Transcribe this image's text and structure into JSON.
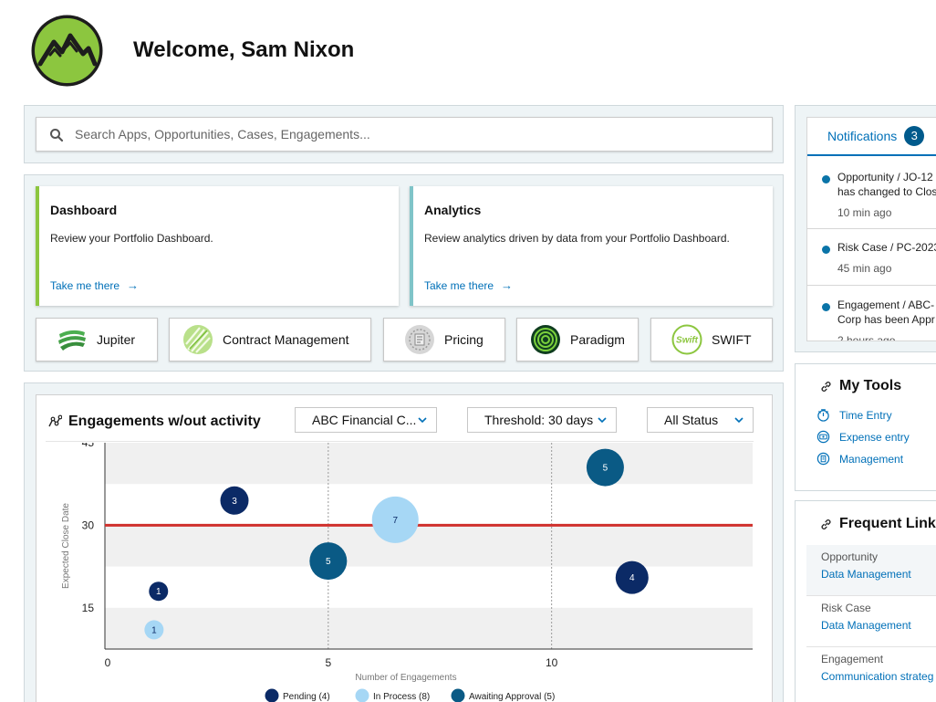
{
  "header": {
    "welcome": "Welcome, Sam Nixon"
  },
  "search": {
    "placeholder": "Search Apps, Opportunities, Cases, Engagements..."
  },
  "cards": [
    {
      "title": "Dashboard",
      "description": "Review your Portfolio Dashboard.",
      "link": "Take me there",
      "accent": "#8cc63f"
    },
    {
      "title": "Analytics",
      "description": "Review analytics driven by data from your Portfolio Dashboard.",
      "link": "Take me there",
      "accent": "#7fc4c8"
    }
  ],
  "apps": [
    {
      "label": "Jupiter",
      "icon": "jupiter-icon"
    },
    {
      "label": "Contract Management",
      "icon": "contract-management-icon"
    },
    {
      "label": "Pricing",
      "icon": "pricing-icon"
    },
    {
      "label": "Paradigm",
      "icon": "paradigm-icon"
    },
    {
      "label": "SWIFT",
      "icon": "swift-icon",
      "icon_text": "Swift"
    }
  ],
  "chart_panel": {
    "title": "Engagements w/out activity",
    "filters": {
      "client": "ABC Financial C...",
      "threshold": "Threshold: 30 days",
      "status": "All Status"
    }
  },
  "chart_data": {
    "type": "scatter",
    "subtype": "bubble",
    "xlabel": "Number of Engagements",
    "ylabel": "Expected Close Date",
    "xlim": [
      0,
      14.5
    ],
    "ylim": [
      7.5,
      45
    ],
    "x_ticks": [
      0,
      5,
      10
    ],
    "y_ticks": [
      15,
      30,
      45
    ],
    "y_tick_labels": [
      "15",
      "30",
      "45"
    ],
    "x_tick_labels": [
      "0",
      "5",
      "10"
    ],
    "threshold_line": 30,
    "threshold_color": "#d0312d",
    "grid": "banded",
    "legend_position": "bottom",
    "series": [
      {
        "name": "Pending (4)",
        "color": "#0b2a66",
        "points": [
          {
            "x": 1.2,
            "y": 18,
            "value": 1
          },
          {
            "x": 2.9,
            "y": 34.5,
            "value": 3
          },
          {
            "x": 11.8,
            "y": 20.5,
            "value": 4
          }
        ]
      },
      {
        "name": "In Process (8)",
        "color": "#a6d7f5",
        "points": [
          {
            "x": 1.1,
            "y": 11,
            "value": 1
          },
          {
            "x": 6.5,
            "y": 31,
            "value": 7
          }
        ]
      },
      {
        "name": "Awaiting Approval (5)",
        "color": "#0a5a85",
        "points": [
          {
            "x": 5.0,
            "y": 23.5,
            "value": 5
          },
          {
            "x": 11.2,
            "y": 40.5,
            "value": 5
          }
        ]
      }
    ]
  },
  "notifications": {
    "tab_label": "Notifications",
    "count": "3",
    "items": [
      {
        "text_line1": "Opportunity / JO-12",
        "text_line2": "has changed to Clos",
        "time": "10 min ago"
      },
      {
        "text_line1": "Risk Case / PC-2023",
        "text_line2": "",
        "time": "45 min ago"
      },
      {
        "text_line1": "Engagement / ABC-",
        "text_line2": "Corp has been Appr",
        "time": "2 hours ago"
      }
    ]
  },
  "my_tools": {
    "title": "My Tools",
    "items": [
      {
        "label": "Time Entry",
        "icon": "timer-icon"
      },
      {
        "label": "Expense entry",
        "icon": "money-icon"
      },
      {
        "label": "Management",
        "icon": "building-icon"
      }
    ]
  },
  "frequent_links": {
    "title": "Frequent Link",
    "groups": [
      {
        "label": "Opportunity",
        "link": "Data Management"
      },
      {
        "label": "Risk Case",
        "link": "Data Management"
      },
      {
        "label": "Engagement",
        "link": "Communication strateg"
      }
    ]
  },
  "colors": {
    "accent_link": "#0070b8",
    "panel_bg": "#eef4f6",
    "logo_green": "#8cc63f"
  }
}
